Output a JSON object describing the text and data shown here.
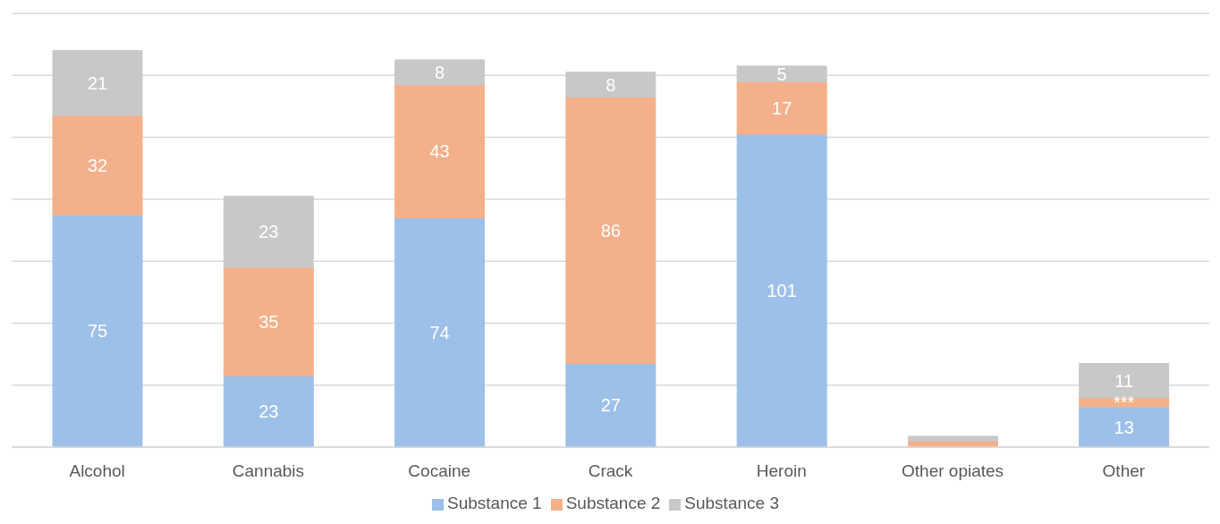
{
  "chart_data": {
    "type": "bar",
    "stacked": true,
    "categories": [
      "Alcohol",
      "Cannabis",
      "Cocaine",
      "Crack",
      "Heroin",
      "Other opiates",
      "Other"
    ],
    "series": [
      {
        "name": "Substance 1",
        "color": "#9dc0e8",
        "values": [
          75,
          23,
          74,
          27,
          101,
          null,
          13
        ],
        "value_labels": [
          "75",
          "23",
          "74",
          "27",
          "101",
          null,
          "13"
        ]
      },
      {
        "name": "Substance 2",
        "color": "#f4b08a",
        "values": [
          32,
          35,
          43,
          86,
          17,
          2,
          3
        ],
        "value_labels": [
          "32",
          "35",
          "43",
          "86",
          "17",
          null,
          "***"
        ]
      },
      {
        "name": "Substance 3",
        "color": "#c8c8c8",
        "values": [
          21,
          23,
          8,
          8,
          5,
          1.5,
          11
        ],
        "value_labels": [
          "21",
          "23",
          "8",
          "8",
          "5",
          null,
          "11"
        ]
      }
    ],
    "tick_labels": "x",
    "grid": "y",
    "legend": "bottom"
  }
}
